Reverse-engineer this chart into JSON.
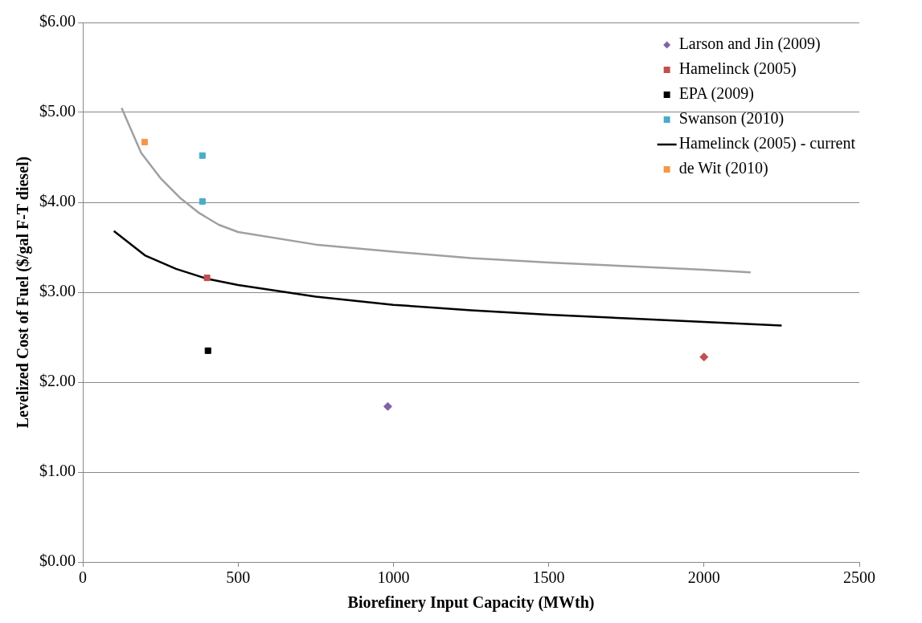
{
  "chart_data": {
    "type": "scatter",
    "xlabel": "Biorefinery Input Capacity (MWth)",
    "ylabel": "Levelized Cost of Fuel ($/gal F-T diesel)",
    "xlim": [
      0,
      2500
    ],
    "xticks": [
      0,
      500,
      1000,
      1500,
      2000,
      2500
    ],
    "ylim": [
      0,
      6
    ],
    "yticks": [
      {
        "value": 0,
        "label": "$0.00"
      },
      {
        "value": 1,
        "label": "$1.00"
      },
      {
        "value": 2,
        "label": "$2.00"
      },
      {
        "value": 3,
        "label": "$3.00"
      },
      {
        "value": 4,
        "label": "$4.00"
      },
      {
        "value": 5,
        "label": "$5.00"
      },
      {
        "value": 6,
        "label": "$6.00"
      }
    ],
    "grid": "y",
    "legend": "top right",
    "series": [
      {
        "name": "Larson and Jin (2009)",
        "type": "scatter",
        "marker": "diamond",
        "color": "#8064a2",
        "x": [
          982
        ],
        "values": [
          1.73
        ]
      },
      {
        "name": "Hamelinck (2005)",
        "type": "scatter",
        "marker": "square",
        "color": "#c0504d",
        "x": [
          400
        ],
        "values": [
          3.16
        ]
      },
      {
        "name": "EPA (2009)",
        "type": "scatter",
        "marker": "square",
        "color": "#000000",
        "x": [
          403
        ],
        "values": [
          2.35
        ]
      },
      {
        "type": "line",
        "marker": "none",
        "color": "#a0a0a0",
        "x": [
          125,
          188,
          250,
          313,
          375,
          438,
          500,
          750,
          1000,
          1250,
          1500,
          1750,
          2000,
          2150
        ],
        "values": [
          5.05,
          4.55,
          4.27,
          4.05,
          3.88,
          3.75,
          3.67,
          3.53,
          3.45,
          3.38,
          3.33,
          3.29,
          3.25,
          3.22
        ]
      },
      {
        "name": "Swanson (2010)",
        "type": "scatter",
        "marker": "square",
        "color": "#4bacc6",
        "x": [
          385,
          385
        ],
        "values": [
          4.52,
          4.01
        ]
      },
      {
        "name": "Hamelinck (2005) - current",
        "type": "line",
        "marker": "none",
        "color": "#000000",
        "x": [
          100,
          200,
          300,
          400,
          500,
          750,
          1000,
          1250,
          1500,
          1750,
          2000,
          2250
        ],
        "values": [
          3.68,
          3.41,
          3.26,
          3.15,
          3.08,
          2.95,
          2.86,
          2.8,
          2.75,
          2.71,
          2.67,
          2.63
        ]
      },
      {
        "name": "de Wit (2010)",
        "type": "scatter",
        "marker": "square",
        "color": "#f79646",
        "x": [
          199
        ],
        "values": [
          4.67
        ]
      },
      {
        "type": "scatter",
        "marker": "diamond",
        "color": "#c0504d",
        "x": [
          2000
        ],
        "values": [
          2.28
        ]
      }
    ]
  }
}
